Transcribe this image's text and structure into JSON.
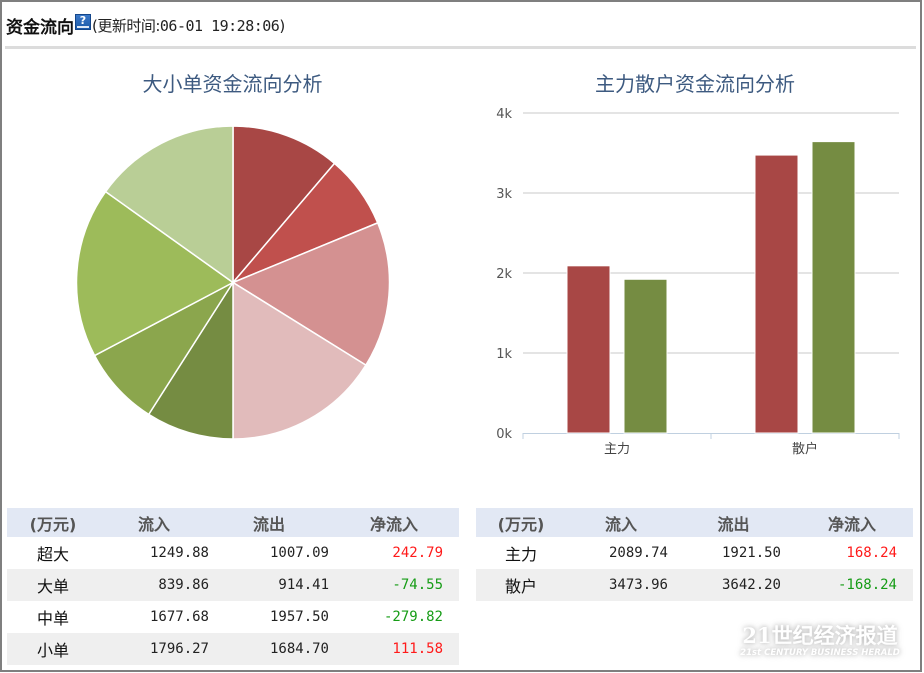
{
  "header": {
    "title": "资金流向",
    "help_icon": "help-icon",
    "update_prefix": "(更新时间:",
    "update_time": "06-01 19:28:06",
    "update_suffix": ")"
  },
  "colors": {
    "inflow_dark": "#a84745",
    "outflow_dark": "#758c42",
    "positive": "#ff1a1a",
    "negative": "#169c16",
    "title": "#3d5a80",
    "table_header_bg": "#e2e8f4",
    "row_alt_bg": "#efefef"
  },
  "chart_data": [
    {
      "type": "pie",
      "title": "大小单资金流向分析",
      "unit": "万元",
      "slices": [
        {
          "name": "超大流入",
          "value": 1249.88,
          "color": "#a84745"
        },
        {
          "name": "大单流入",
          "value": 839.86,
          "color": "#c0504d"
        },
        {
          "name": "中单流入",
          "value": 1677.68,
          "color": "#d49191"
        },
        {
          "name": "小单流入",
          "value": 1796.27,
          "color": "#e1bbbb"
        },
        {
          "name": "超大流出",
          "value": 1007.09,
          "color": "#758c42"
        },
        {
          "name": "大单流出",
          "value": 914.41,
          "color": "#8ba64d"
        },
        {
          "name": "中单流出",
          "value": 1957.5,
          "color": "#9dbb5a"
        },
        {
          "name": "小单流出",
          "value": 1684.7,
          "color": "#b9ce96"
        }
      ],
      "start_angle": 0,
      "direction": "clockwise",
      "legend": "none"
    },
    {
      "type": "bar",
      "title": "主力散户资金流向分析",
      "categories": [
        "主力",
        "散户"
      ],
      "series": [
        {
          "name": "流入",
          "values": [
            2089.74,
            3473.96
          ],
          "color": "#a84745"
        },
        {
          "name": "流出",
          "values": [
            1921.5,
            3642.2
          ],
          "color": "#758c42"
        }
      ],
      "yticks": [
        "0k",
        "1k",
        "2k",
        "3k",
        "4k"
      ],
      "ylim": [
        0,
        4000
      ],
      "xlabel": "",
      "ylabel": "",
      "grid": true,
      "legend": "none"
    }
  ],
  "tables": {
    "size_table": {
      "headers": [
        "(万元)",
        "流入",
        "流出",
        "净流入"
      ],
      "rows": [
        {
          "label": "超大",
          "inflow": "1249.88",
          "outflow": "1007.09",
          "net": "242.79",
          "sign": "pos"
        },
        {
          "label": "大单",
          "inflow": "839.86",
          "outflow": "914.41",
          "net": "-74.55",
          "sign": "neg"
        },
        {
          "label": "中单",
          "inflow": "1677.68",
          "outflow": "1957.50",
          "net": "-279.82",
          "sign": "neg"
        },
        {
          "label": "小单",
          "inflow": "1796.27",
          "outflow": "1684.70",
          "net": "111.58",
          "sign": "pos"
        }
      ]
    },
    "main_retail_table": {
      "headers": [
        "(万元)",
        "流入",
        "流出",
        "净流入"
      ],
      "rows": [
        {
          "label": "主力",
          "inflow": "2089.74",
          "outflow": "1921.50",
          "net": "168.24",
          "sign": "pos"
        },
        {
          "label": "散户",
          "inflow": "3473.96",
          "outflow": "3642.20",
          "net": "-168.24",
          "sign": "neg"
        }
      ]
    }
  },
  "watermark": {
    "cn": "21世纪经济报道",
    "en": "21st CENTURY BUSINESS HERALD"
  }
}
